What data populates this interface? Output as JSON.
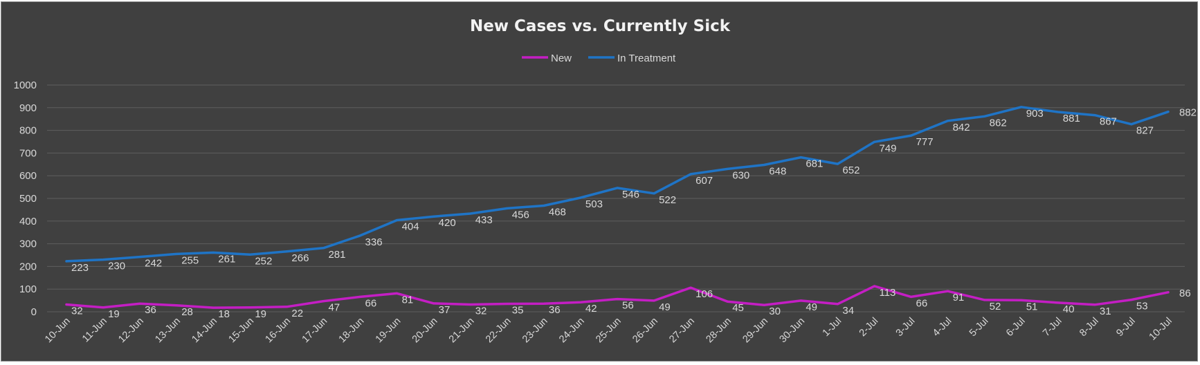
{
  "chart_data": {
    "type": "line",
    "title": "New Cases vs. Currently Sick",
    "categories": [
      "10-Jun",
      "11-Jun",
      "12-Jun",
      "13-Jun",
      "14-Jun",
      "15-Jun",
      "16-Jun",
      "17-Jun",
      "18-Jun",
      "19-Jun",
      "20-Jun",
      "21-Jun",
      "22-Jun",
      "23-Jun",
      "24-Jun",
      "25-Jun",
      "26-Jun",
      "27-Jun",
      "28-Jun",
      "29-Jun",
      "30-Jun",
      "1-Jul",
      "2-Jul",
      "3-Jul",
      "4-Jul",
      "5-Jul",
      "6-Jul",
      "7-Jul",
      "8-Jul",
      "9-Jul",
      "10-Jul"
    ],
    "series": [
      {
        "name": "New",
        "color": "#c41ec4",
        "values": [
          32,
          19,
          36,
          28,
          18,
          19,
          22,
          47,
          66,
          81,
          37,
          32,
          35,
          36,
          42,
          56,
          49,
          106,
          45,
          30,
          49,
          34,
          113,
          66,
          91,
          52,
          51,
          40,
          31,
          53,
          86
        ]
      },
      {
        "name": "In Treatment",
        "color": "#1f74c6",
        "values": [
          223,
          230,
          242,
          255,
          261,
          252,
          266,
          281,
          336,
          404,
          420,
          433,
          456,
          468,
          503,
          546,
          522,
          607,
          630,
          648,
          681,
          652,
          749,
          777,
          842,
          862,
          903,
          881,
          867,
          827,
          882
        ]
      }
    ],
    "ylim": [
      0,
      1000
    ],
    "yticks": [
      "0",
      "100",
      "200",
      "300",
      "400",
      "500",
      "600",
      "700",
      "800",
      "900",
      "1000"
    ],
    "xlabel": "",
    "ylabel": "",
    "grid": true,
    "legend_position": "top-center",
    "data_labels": true,
    "background_color": "#404040"
  }
}
